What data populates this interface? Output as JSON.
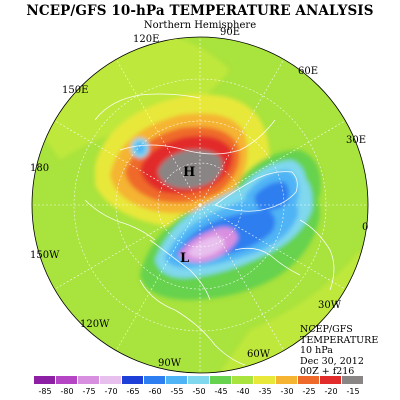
{
  "title": "NCEP/GFS 10-hPa TEMPERATURE ANALYSIS",
  "subtitle": "Northern Hemisphere",
  "longitude_labels": [
    {
      "name": "lon-90e",
      "text": "90E"
    },
    {
      "name": "lon-60e",
      "text": "60E"
    },
    {
      "name": "lon-30e",
      "text": "30E"
    },
    {
      "name": "lon-0",
      "text": "0"
    },
    {
      "name": "lon-30w",
      "text": "30W"
    },
    {
      "name": "lon-60w",
      "text": "60W"
    },
    {
      "name": "lon-90w",
      "text": "90W"
    },
    {
      "name": "lon-120w",
      "text": "120W"
    },
    {
      "name": "lon-150w",
      "text": "150W"
    },
    {
      "name": "lon-180",
      "text": "180"
    },
    {
      "name": "lon-150e",
      "text": "150E"
    },
    {
      "name": "lon-120e",
      "text": "120E"
    }
  ],
  "pressure_centers": {
    "high": "H",
    "low": "L"
  },
  "info": {
    "line1": "NCEP/GFS",
    "line2": "TEMPERATURE",
    "line3": "10 hPa",
    "line4": "Dec 30, 2012",
    "line5": "00Z + f216"
  },
  "legend": {
    "unit": "",
    "ticks": [
      "-85",
      "-80",
      "-75",
      "-70",
      "-65",
      "-60",
      "-55",
      "-50",
      "-45",
      "-40",
      "-35",
      "-30",
      "-25",
      "-20",
      "-15"
    ],
    "colors": [
      "#8c1fa4",
      "#b545c4",
      "#d98fe0",
      "#e8c0ee",
      "#1e3fd8",
      "#2d7ef0",
      "#4fb4f5",
      "#7fd8ee",
      "#66d24e",
      "#a9e33d",
      "#e8e83a",
      "#f5b431",
      "#ef6a2a",
      "#e22b2b",
      "#8a8585"
    ]
  }
}
